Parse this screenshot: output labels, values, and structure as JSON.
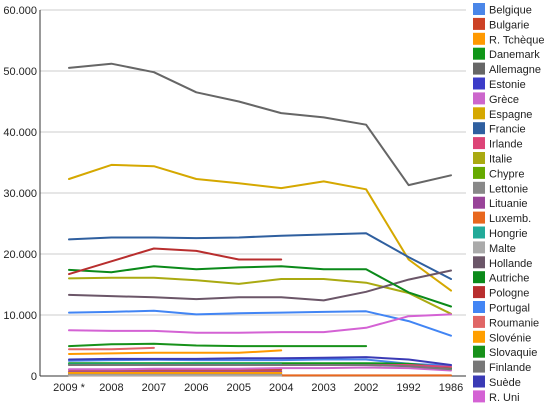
{
  "chart_data": {
    "type": "line",
    "title": "",
    "xlabel": "",
    "ylabel": "",
    "x": [
      "2009 *",
      "2008",
      "2007",
      "2006",
      "2005",
      "2004",
      "2003",
      "2002",
      "1992",
      "1986"
    ],
    "y_ticks": [
      "0",
      "10.000",
      "20.000",
      "30.000",
      "40.000",
      "50.000",
      "60.000"
    ],
    "ylim": [
      0,
      60000
    ],
    "grid": "horizontal",
    "legend_position": "right",
    "series": [
      {
        "name": "Belgique",
        "color": "#4a86e8",
        "values": [
          2500,
          2600,
          2650,
          2600,
          2600,
          2600,
          2700,
          2700,
          2000,
          1700
        ]
      },
      {
        "name": "Bulgarie",
        "color": "#cc4125",
        "values": [
          1000,
          1000,
          1000,
          1000,
          1000,
          1000,
          null,
          null,
          null,
          null
        ]
      },
      {
        "name": "R. Tchèque",
        "color": "#ff9900",
        "values": [
          3600,
          3700,
          3800,
          3800,
          3800,
          4200,
          null,
          null,
          null,
          null
        ]
      },
      {
        "name": "Danemark",
        "color": "#109618",
        "values": [
          2100,
          2100,
          2100,
          2100,
          2100,
          2100,
          2100,
          2100,
          2000,
          1300
        ]
      },
      {
        "name": "Allemagne",
        "color": "#666666",
        "values": [
          50500,
          51200,
          49800,
          46500,
          45000,
          43100,
          42400,
          41200,
          31300,
          32900
        ]
      },
      {
        "name": "Estonie",
        "color": "#3c3cc8",
        "values": [
          300,
          300,
          300,
          300,
          300,
          300,
          null,
          null,
          null,
          null
        ]
      },
      {
        "name": "Grèce",
        "color": "#cc66cc",
        "values": [
          1100,
          1100,
          1200,
          1200,
          1200,
          1300,
          1300,
          1400,
          1300,
          900
        ]
      },
      {
        "name": "Espagne",
        "color": "#d5a800",
        "values": [
          32300,
          34600,
          34400,
          32300,
          31600,
          30800,
          31900,
          30600,
          19100,
          14000
        ]
      },
      {
        "name": "Francie",
        "color": "#2f5f9f",
        "values": [
          22400,
          22700,
          22700,
          22600,
          22700,
          23000,
          23200,
          23400,
          19500,
          15900
        ]
      },
      {
        "name": "Irlande",
        "color": "#dd4477",
        "values": [
          1800,
          1800,
          1800,
          1800,
          1800,
          1800,
          1800,
          1800,
          1800,
          1500
        ]
      },
      {
        "name": "Italie",
        "color": "#aaaa11",
        "values": [
          16000,
          16100,
          16100,
          15700,
          15100,
          15900,
          15900,
          15300,
          13600,
          10200
        ]
      },
      {
        "name": "Chypre",
        "color": "#66aa00",
        "values": [
          500,
          500,
          500,
          500,
          500,
          500,
          null,
          null,
          null,
          null
        ]
      },
      {
        "name": "Lettonie",
        "color": "#888888",
        "values": [
          300,
          300,
          300,
          300,
          300,
          300,
          null,
          null,
          null,
          null
        ]
      },
      {
        "name": "Lituanie",
        "color": "#994499",
        "values": [
          700,
          700,
          700,
          700,
          700,
          700,
          null,
          null,
          null,
          null
        ]
      },
      {
        "name": "Luxemb.",
        "color": "#e8671e",
        "values": [
          100,
          100,
          100,
          100,
          100,
          100,
          100,
          100,
          100,
          100
        ]
      },
      {
        "name": "Hongrie",
        "color": "#22aa99",
        "values": [
          1900,
          1900,
          1900,
          1900,
          1900,
          1900,
          null,
          null,
          null,
          null
        ]
      },
      {
        "name": "Malte",
        "color": "#aaaaaa",
        "values": [
          100,
          100,
          100,
          100,
          100,
          100,
          null,
          null,
          null,
          null
        ]
      },
      {
        "name": "Hollande",
        "color": "#6b5668",
        "values": [
          13300,
          13100,
          12900,
          12600,
          12900,
          12900,
          12400,
          13800,
          15800,
          17300
        ]
      },
      {
        "name": "Autriche",
        "color": "#0b8a1a",
        "values": [
          17400,
          17000,
          18000,
          17500,
          17800,
          18000,
          17500,
          17500,
          13700,
          11400
        ]
      },
      {
        "name": "Pologne",
        "color": "#b82e2e",
        "values": [
          16700,
          18800,
          20900,
          20500,
          19100,
          19100,
          null,
          null,
          null,
          null
        ]
      },
      {
        "name": "Portugal",
        "color": "#4285f4",
        "values": [
          10400,
          10500,
          10700,
          10100,
          10300,
          10400,
          10500,
          10600,
          9000,
          6600
        ]
      },
      {
        "name": "Roumanie",
        "color": "#e06666",
        "values": [
          4400,
          4400,
          4600,
          null,
          null,
          null,
          null,
          null,
          null,
          null
        ]
      },
      {
        "name": "Slovénie",
        "color": "#ff9f00",
        "values": [
          500,
          500,
          500,
          500,
          500,
          500,
          null,
          null,
          null,
          null
        ]
      },
      {
        "name": "Slovaquie",
        "color": "#17911a",
        "values": [
          4900,
          5200,
          5300,
          5000,
          4900,
          4900,
          4900,
          4900,
          null,
          null
        ]
      },
      {
        "name": "Finlande",
        "color": "#777777",
        "values": [
          1800,
          1800,
          1800,
          1800,
          1800,
          1800,
          1800,
          1800,
          1600,
          1100
        ]
      },
      {
        "name": "Suède",
        "color": "#3a3ab5",
        "values": [
          2700,
          2800,
          2800,
          2800,
          2900,
          2900,
          3000,
          3100,
          2700,
          1800
        ]
      },
      {
        "name": "R. Uni",
        "color": "#d462d4",
        "values": [
          7500,
          7400,
          7400,
          7100,
          7100,
          7200,
          7200,
          7900,
          9800,
          10100
        ]
      }
    ]
  }
}
